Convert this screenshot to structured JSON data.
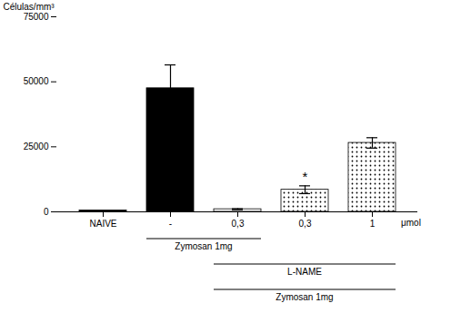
{
  "chart_data": {
    "type": "bar",
    "categories": [
      "NAIVE",
      "-",
      "0,3",
      "0,3",
      "1"
    ],
    "values": [
      500,
      47500,
      1000,
      8500,
      26500
    ],
    "errors": [
      0,
      9000,
      200,
      1500,
      2000
    ],
    "colors": [
      "black",
      "black",
      "white",
      "dotted",
      "dotted"
    ],
    "ylabel": "Células/mm³",
    "xlabel": "μmol",
    "ylim": [
      0,
      75000
    ],
    "yticks": [
      0,
      25000,
      50000,
      75000
    ],
    "annotations": [
      {
        "text": "*",
        "bar": 3
      }
    ],
    "brackets": [
      {
        "label": "Zymosan 1mg",
        "from": 1,
        "to": 2
      },
      {
        "label": "L-NAME",
        "from": 2,
        "to": 4
      },
      {
        "label": "Zymosan 1mg",
        "from": 2,
        "to": 4
      }
    ]
  }
}
